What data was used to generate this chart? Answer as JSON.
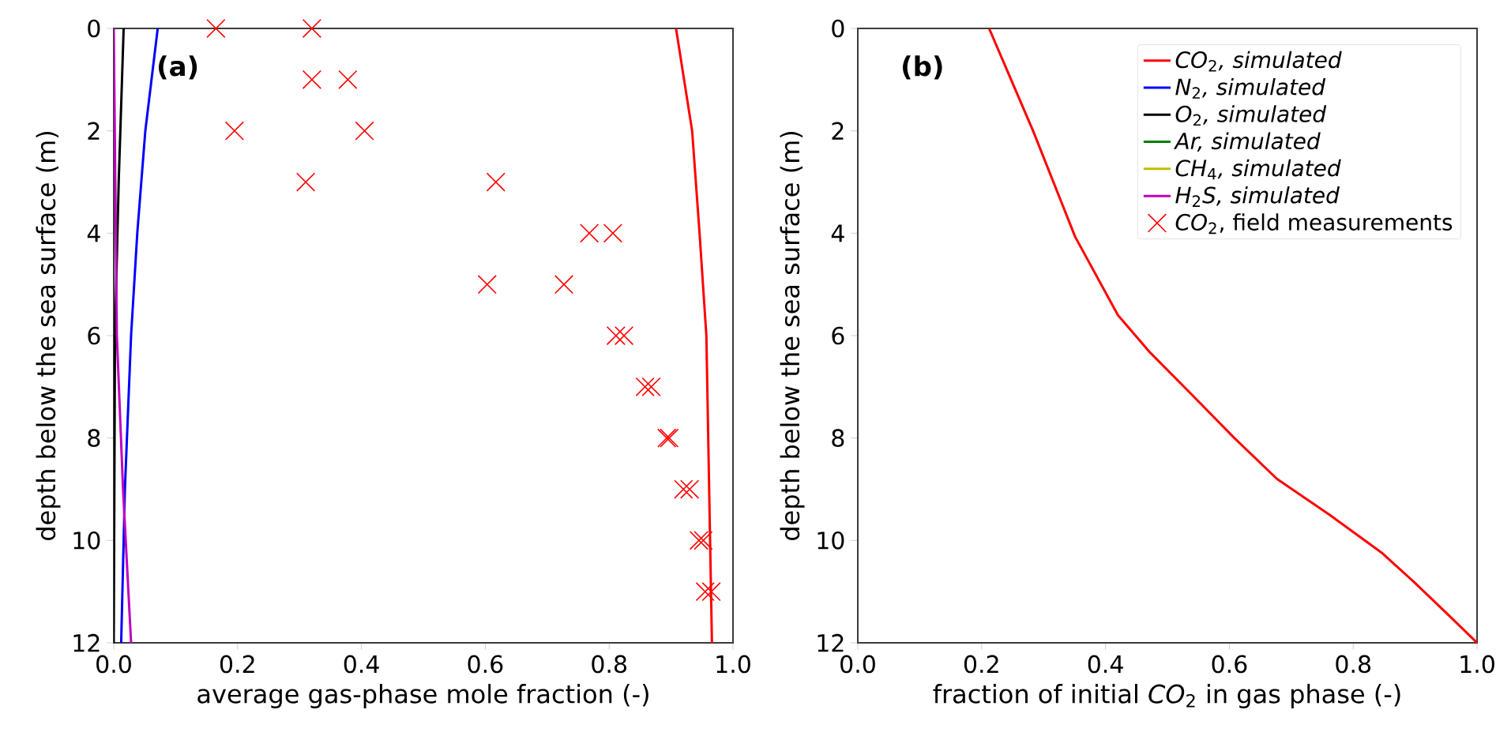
{
  "chart_data": [
    {
      "type": "line",
      "xlabel": "average gas-phase mole fraction (-)",
      "ylabel": "depth below the sea surface (m)",
      "xlim": [
        0,
        1
      ],
      "ylim": [
        12,
        0
      ],
      "xticks": [
        {
          "value": 0,
          "label": "0.0"
        },
        {
          "value": 0.2,
          "label": "0.2"
        },
        {
          "value": 0.4,
          "label": "0.4"
        },
        {
          "value": 0.6,
          "label": "0.6"
        },
        {
          "value": 0.8,
          "label": "0.8"
        },
        {
          "value": 1,
          "label": "1.0"
        }
      ],
      "yticks": [
        0,
        2,
        4,
        6,
        8,
        10,
        12
      ],
      "annotations": [
        "(a)"
      ],
      "legend": "right",
      "grid": false,
      "series": [
        {
          "name": "*CO*$_{2}$*, simulated*",
          "color": "#ff0000",
          "x": [
            0.908,
            0.934,
            0.946,
            0.957,
            0.96,
            0.963,
            0.966
          ],
          "values": [
            0,
            2,
            4,
            6,
            8,
            10,
            12
          ]
        },
        {
          "name": "*N*$_{2}$*, simulated*",
          "color": "#0000ff",
          "x": [
            0.071,
            0.051,
            0.038,
            0.028,
            0.018,
            0.012
          ],
          "values": [
            0,
            2,
            4,
            6,
            9,
            12
          ]
        },
        {
          "name": "*O*$_{2}$*, simulated*",
          "color": "#000000",
          "x": [
            0.016,
            0.008,
            0.002,
            0.0
          ],
          "values": [
            0,
            3,
            6,
            12
          ]
        },
        {
          "name": "*Ar, simulated*",
          "color": "#008000",
          "values": [
            null,
            null
          ]
        },
        {
          "name": "*CH*$_{4}$*, simulated*",
          "color": "#bfbf00",
          "values": [
            null,
            null
          ]
        },
        {
          "name": "*H*$_{2}$*S, simulated*",
          "color": "#bf00bf",
          "x": [
            0.0,
            0.005,
            0.015,
            0.028
          ],
          "values": [
            0,
            6,
            9,
            12
          ]
        },
        {
          "name": "*CO*$_{2}$, field measurements",
          "type": "scatter",
          "marker": "cross",
          "color": "#ff0000",
          "x": [
            0.165,
            0.32,
            0.32,
            0.378,
            0.195,
            0.405,
            0.31,
            0.617,
            0.768,
            0.806,
            0.603,
            0.727,
            0.811,
            0.824,
            0.858,
            0.868,
            0.893,
            0.897,
            0.92,
            0.93,
            0.945,
            0.952,
            0.955,
            0.965
          ],
          "values": [
            0,
            0,
            1,
            1,
            2,
            2,
            3,
            3,
            4,
            4,
            5,
            5,
            6,
            6,
            7,
            7,
            8,
            8,
            9,
            9,
            10,
            10,
            11,
            11
          ]
        }
      ]
    },
    {
      "type": "line",
      "xlabel": "fraction of initial *CO*$_{2}$ in gas phase (-)",
      "ylabel": "depth below the sea surface (m)",
      "xlim": [
        0,
        1
      ],
      "ylim": [
        12,
        0
      ],
      "xticks": [
        {
          "value": 0,
          "label": "0.0"
        },
        {
          "value": 0.2,
          "label": "0.2"
        },
        {
          "value": 0.4,
          "label": "0.4"
        },
        {
          "value": 0.6,
          "label": "0.6"
        },
        {
          "value": 0.8,
          "label": "0.8"
        },
        {
          "value": 1,
          "label": "1.0"
        }
      ],
      "yticks": [
        0,
        2,
        4,
        6,
        8,
        10,
        12
      ],
      "annotations": [
        "(b)"
      ],
      "grid": false,
      "series": [
        {
          "color": "#ff0000",
          "x": [
            0.212,
            0.283,
            0.351,
            0.42,
            0.472,
            0.54,
            0.608,
            0.677,
            0.762,
            0.847,
            0.897,
            0.949,
            1.0
          ],
          "values": [
            0,
            2.0,
            4.07,
            5.6,
            6.33,
            7.16,
            8.0,
            8.8,
            9.5,
            10.25,
            10.8,
            11.4,
            12
          ]
        }
      ]
    }
  ]
}
